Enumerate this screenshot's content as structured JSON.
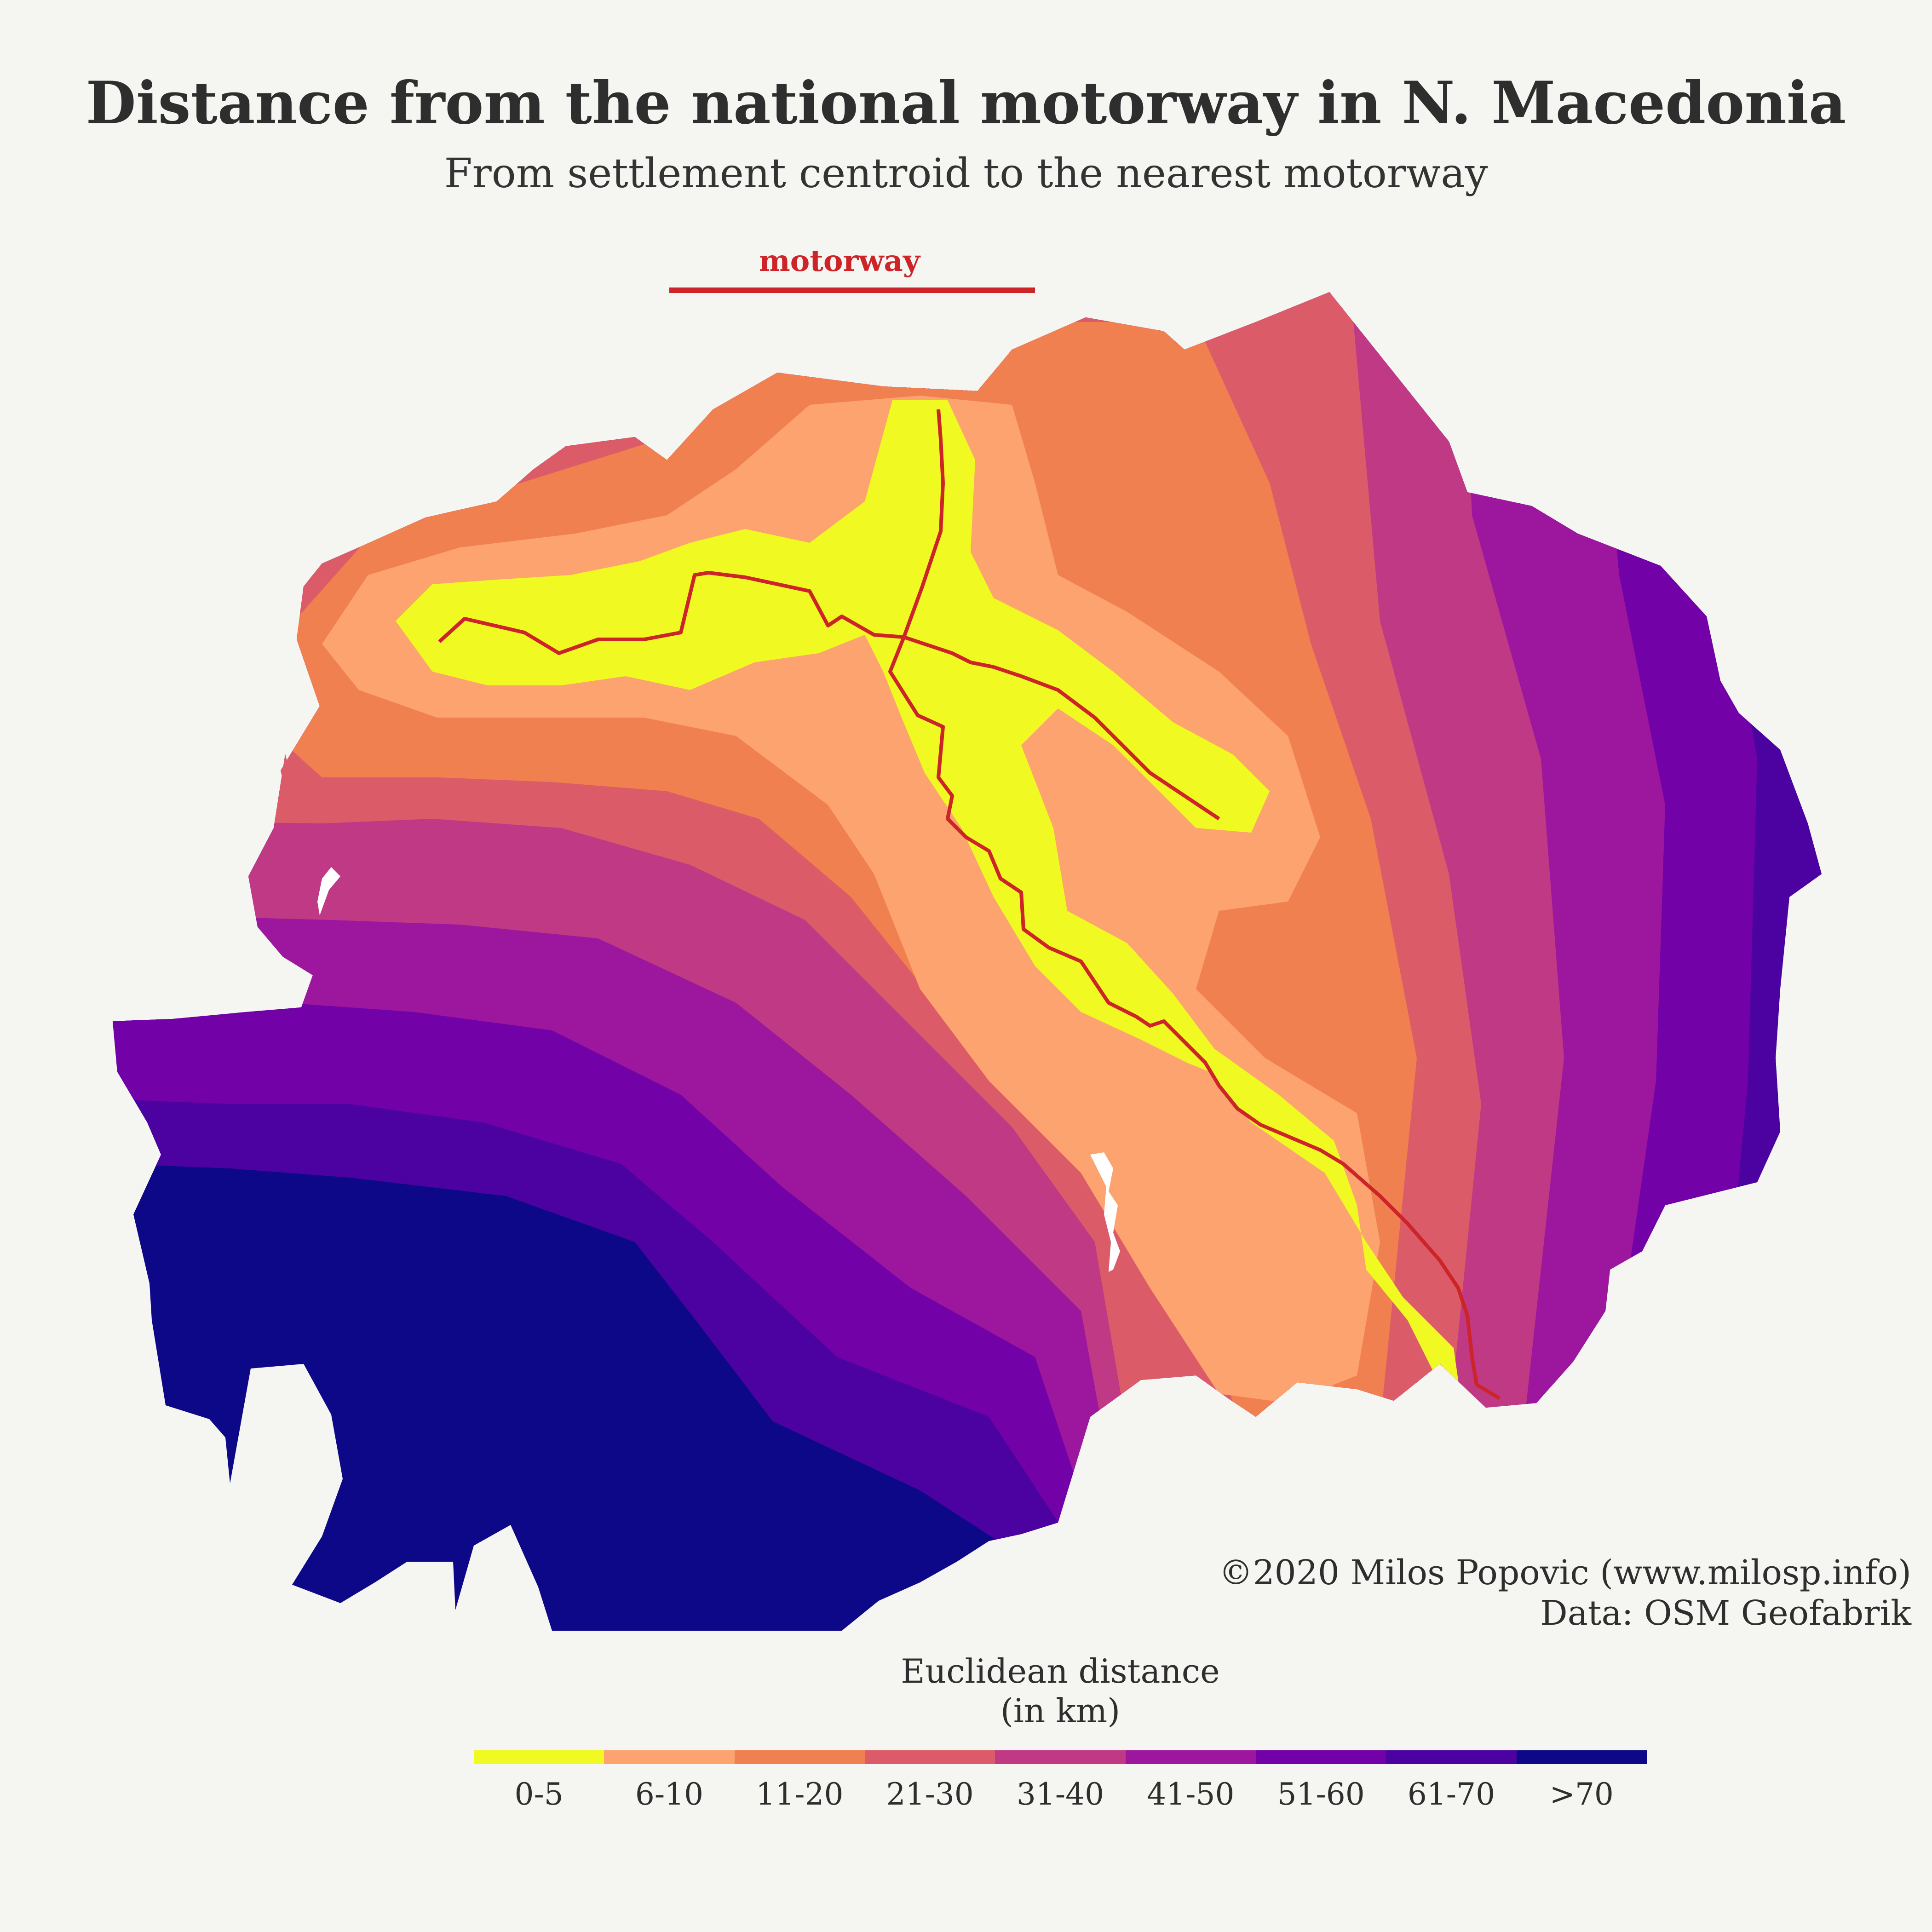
{
  "title": "Distance from the national motorway in N. Macedonia",
  "subtitle": "From settlement centroid to the nearest motorway",
  "motorway_legend": {
    "label": "motorway",
    "color": "#cc2428"
  },
  "credit": {
    "line1": "©2020 Milos Popovic (www.milosp.info)",
    "line2": "Data: OSM Geofabrik"
  },
  "legend": {
    "title_line1": "Euclidean distance",
    "title_line2": "(in km)",
    "classes": [
      {
        "label": "0-5",
        "color": "#f0f921"
      },
      {
        "label": "6-10",
        "color": "#fca36f"
      },
      {
        "label": "11-20",
        "color": "#f0804f"
      },
      {
        "label": "21-30",
        "color": "#db5c68"
      },
      {
        "label": "31-40",
        "color": "#bf3984"
      },
      {
        "label": "41-50",
        "color": "#9c179e"
      },
      {
        "label": "51-60",
        "color": "#7201a8"
      },
      {
        "label": "61-70",
        "color": "#4c02a1"
      },
      {
        "label": ">70",
        "color": "#0d0887"
      }
    ]
  },
  "map": {
    "country": "N. Macedonia",
    "water_color": "#ffffff"
  }
}
